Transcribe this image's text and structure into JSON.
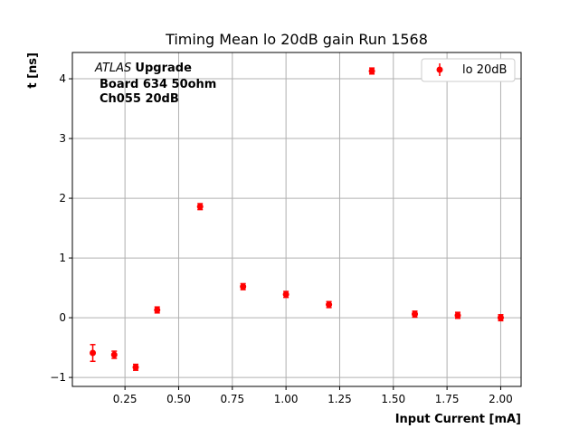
{
  "chart_data": {
    "type": "scatter",
    "title": "Timing Mean lo 20dB gain Run 1568",
    "xlabel": "Input Current [mA]",
    "ylabel": "t [ns]",
    "xlim": [
      0.005,
      2.095
    ],
    "ylim": [
      -1.15,
      4.44
    ],
    "grid": true,
    "legend_position": "top-right",
    "xticks": [
      0.25,
      0.5,
      0.75,
      1.0,
      1.25,
      1.5,
      1.75,
      2.0
    ],
    "xtick_labels": [
      "0.25",
      "0.50",
      "0.75",
      "1.00",
      "1.25",
      "1.50",
      "1.75",
      "2.00"
    ],
    "yticks": [
      -1,
      0,
      1,
      2,
      3,
      4
    ],
    "ytick_labels": [
      "−1",
      "0",
      "1",
      "2",
      "3",
      "4"
    ],
    "annotation": {
      "italic": "ATLAS",
      "bold": "Upgrade",
      "line2": "Board 634 50ohm",
      "line3": "Ch055 20dB"
    },
    "series": [
      {
        "name": "lo 20dB",
        "color": "#ff0000",
        "x": [
          0.1,
          0.2,
          0.3,
          0.4,
          0.6,
          0.8,
          1.0,
          1.2,
          1.4,
          1.6,
          1.8,
          2.0
        ],
        "y": [
          -0.59,
          -0.62,
          -0.83,
          0.13,
          1.86,
          0.52,
          0.39,
          0.22,
          4.13,
          0.06,
          0.04,
          0.0
        ],
        "yerr": [
          0.14,
          0.06,
          0.05,
          0.05,
          0.05,
          0.05,
          0.05,
          0.05,
          0.05,
          0.05,
          0.05,
          0.05
        ]
      }
    ]
  }
}
